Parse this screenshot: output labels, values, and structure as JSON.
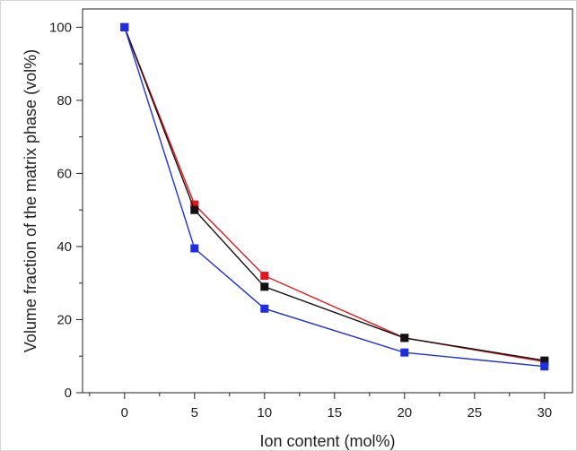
{
  "chart_data": {
    "type": "line",
    "title": "",
    "xlabel": "Ion content (mol%)",
    "ylabel": "Volume fraction of the matrix phase (vol%)",
    "xlim": [
      -3,
      32
    ],
    "ylim": [
      0,
      105
    ],
    "xticks": [
      0,
      5,
      10,
      15,
      20,
      25,
      30
    ],
    "yticks": [
      0,
      20,
      40,
      60,
      80,
      100
    ],
    "grid": false,
    "legend": "none",
    "x": [
      0,
      5,
      10,
      20,
      30
    ],
    "series": [
      {
        "color": "#e8141b",
        "marker": "square",
        "values": [
          100,
          51.5,
          32,
          15,
          8.5
        ]
      },
      {
        "color": "#111111",
        "marker": "square",
        "values": [
          100,
          50,
          29,
          15,
          8.8
        ]
      },
      {
        "color": "#1f2fe0",
        "marker": "square",
        "values": [
          100,
          39.5,
          23,
          11,
          7.2
        ]
      }
    ]
  }
}
